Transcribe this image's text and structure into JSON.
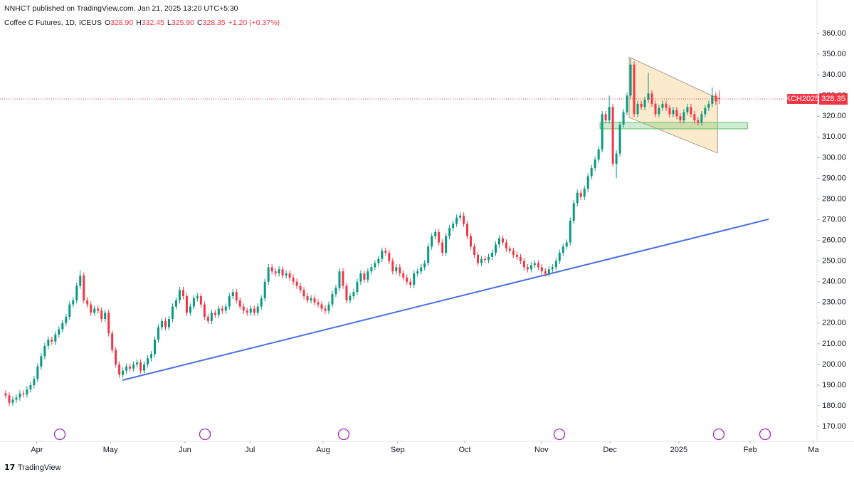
{
  "header": {
    "publisher": "NNHCT published on TradingView.com, Jan 21, 2025 13:20 UTC+5:30"
  },
  "footer": {
    "brand": "TradingView"
  },
  "chart_data": {
    "type": "candlestick",
    "title": "Coffee C Futures, 1D, ICEUS",
    "ohlc": [
      {
        "key": "O",
        "label": "328.90"
      },
      {
        "key": "H",
        "label": "332.45"
      },
      {
        "key": "L",
        "label": "325.90"
      },
      {
        "key": "C",
        "label": "328.35"
      }
    ],
    "change_label": "+1.20 (+0.37%)",
    "symbol_tag": "KCH2025",
    "last_price_label": "328.35",
    "up_color": "#089981",
    "down_color": "#f23645",
    "grid": false,
    "open": [
      186,
      185,
      181.5,
      183,
      184,
      186,
      185.5,
      188,
      190,
      193,
      199,
      204,
      209,
      212,
      211,
      214.5,
      217,
      220,
      223,
      229,
      231,
      238,
      243,
      231,
      229,
      225,
      227,
      226,
      222,
      225,
      215,
      207,
      200,
      195,
      197,
      199,
      198,
      200,
      201,
      197,
      200,
      203,
      205,
      212,
      218,
      221,
      218,
      222,
      228,
      231,
      236,
      233,
      225,
      228,
      232,
      233,
      229,
      223,
      221,
      225,
      224,
      227,
      226,
      228,
      233,
      235,
      231,
      228,
      226,
      225,
      227,
      225,
      228,
      232,
      240,
      247,
      245,
      244,
      246,
      243,
      244,
      242,
      240,
      238,
      236,
      233,
      231,
      232,
      230,
      229,
      227,
      226,
      229,
      234,
      237,
      245,
      238,
      231,
      233,
      235,
      240,
      244,
      241,
      245,
      247,
      249,
      251,
      255,
      254,
      250,
      245,
      247,
      244,
      242,
      240,
      238.5,
      244,
      245,
      247,
      249,
      257,
      262,
      264,
      259,
      254,
      262,
      266,
      268,
      271,
      272,
      268,
      262,
      257,
      253,
      249,
      251,
      250.5,
      252,
      254,
      258,
      261,
      259,
      256,
      255,
      253,
      252,
      250,
      247,
      246,
      248,
      249,
      247,
      245,
      244,
      246,
      247,
      250,
      254,
      257,
      259,
      269.5,
      278,
      283,
      281,
      285,
      291,
      295,
      299,
      304,
      321,
      318,
      324.5,
      297,
      302,
      316,
      322,
      330,
      345,
      321,
      326,
      324.5,
      328,
      331,
      326,
      321,
      324,
      326,
      324,
      321,
      323,
      320,
      318,
      322,
      324.5,
      321,
      318,
      317,
      321,
      324,
      326,
      330,
      328.9
    ],
    "high": [
      187.5,
      186.5,
      184.5,
      185.5,
      187.5,
      187.5,
      189.5,
      191.5,
      194.5,
      200.5,
      205.5,
      210.5,
      213.5,
      213.5,
      216,
      218.5,
      221.5,
      224.5,
      230.5,
      232.5,
      239.5,
      245.5,
      244.5,
      232.5,
      230.5,
      228.5,
      228.5,
      227.5,
      226.5,
      226.5,
      216.5,
      208.5,
      201.5,
      198.5,
      200.5,
      200.5,
      201.5,
      202.5,
      202.5,
      201.5,
      204.5,
      206.5,
      213.5,
      219.5,
      222.5,
      222.5,
      223.5,
      229.5,
      232.5,
      237.5,
      237.5,
      234.5,
      229.5,
      233.5,
      234.5,
      234.5,
      230.5,
      224.5,
      226.5,
      226.5,
      228.5,
      228.5,
      229.5,
      234.5,
      236.5,
      236.5,
      232.5,
      229.5,
      227.5,
      228.5,
      228.5,
      229.5,
      233.5,
      241.5,
      248.5,
      248.5,
      246.5,
      247.5,
      247.5,
      245.5,
      245.5,
      243.5,
      241.5,
      239.5,
      237.5,
      234.5,
      233.5,
      233.5,
      231.5,
      230.5,
      228.5,
      230.5,
      235.5,
      238.5,
      246.5,
      246.5,
      239.5,
      234.5,
      236.5,
      241.5,
      245.5,
      245.5,
      246.5,
      248.5,
      250.5,
      252.5,
      256.5,
      256.5,
      255.5,
      251.5,
      248.5,
      248.5,
      245.5,
      243.5,
      241.5,
      245.5,
      246.5,
      248.5,
      250.5,
      258.5,
      263.5,
      265.5,
      265.5,
      260.5,
      263.5,
      267.5,
      269.5,
      272.5,
      273.5,
      273.5,
      269.5,
      263.5,
      258.5,
      254.5,
      252.5,
      252.5,
      253.5,
      255.5,
      259.5,
      262.5,
      262.5,
      260.5,
      257.5,
      256.5,
      254.5,
      253.5,
      251.5,
      248.5,
      249.5,
      250.5,
      250.5,
      248.5,
      246.5,
      247.5,
      248.5,
      251.5,
      255.5,
      258.5,
      260.5,
      271,
      279.5,
      284.5,
      284.5,
      286.5,
      292.5,
      296.5,
      300.5,
      305.5,
      322.5,
      322.5,
      330,
      326,
      303.5,
      317.5,
      323.5,
      331.5,
      348,
      346.5,
      327.5,
      327.5,
      329.5,
      341,
      332.5,
      327.5,
      325.5,
      327.5,
      327.5,
      325.5,
      324.5,
      324.5,
      321.5,
      323.5,
      326,
      326,
      322.5,
      319.5,
      322.5,
      325.5,
      327.5,
      334,
      331.5,
      332.45
    ],
    "low": [
      183.5,
      180,
      180,
      181.5,
      182.5,
      184,
      184,
      186.5,
      188.5,
      191.5,
      197.5,
      202.5,
      207.5,
      209.5,
      209.5,
      213,
      215.5,
      218.5,
      221.5,
      227.5,
      229.5,
      236.5,
      229.5,
      227.5,
      223.5,
      223.5,
      224.5,
      220.5,
      220.5,
      213.5,
      205.5,
      198.5,
      193.5,
      193.5,
      195.5,
      196.5,
      196.5,
      198.5,
      195.5,
      195.5,
      198.5,
      201.5,
      203.5,
      210.5,
      216.5,
      216.5,
      216.5,
      220.5,
      226.5,
      229.5,
      231.5,
      223.5,
      223.5,
      226.5,
      230.5,
      227.5,
      221.5,
      219.5,
      219.5,
      222.5,
      222.5,
      224.5,
      224.5,
      226.5,
      231.5,
      229.5,
      226.5,
      224.5,
      223.5,
      223.5,
      223.5,
      223.5,
      226.5,
      230.5,
      238.5,
      243.5,
      242.5,
      242.5,
      241.5,
      241.5,
      240.5,
      238.5,
      236.5,
      234.5,
      231.5,
      229.5,
      229.5,
      228.5,
      227.5,
      225.5,
      224.5,
      224.5,
      227.5,
      232.5,
      235.5,
      236.5,
      229.5,
      229.5,
      231.5,
      233.5,
      238.5,
      239.5,
      239.5,
      243.5,
      245.5,
      247.5,
      249.5,
      252.5,
      248.5,
      243.5,
      243.5,
      242.5,
      240.5,
      238.5,
      237,
      237,
      242.5,
      243.5,
      245.5,
      247.5,
      255.5,
      260.5,
      257.5,
      252.5,
      252.5,
      260.5,
      264.5,
      266.5,
      269.5,
      266.5,
      260.5,
      255.5,
      251.5,
      247.5,
      247.5,
      249,
      249,
      250.5,
      252.5,
      256.5,
      257.5,
      254.5,
      253.5,
      251.5,
      250.5,
      248.5,
      245.5,
      244.5,
      244.5,
      246.5,
      245.5,
      243.5,
      242.5,
      242.5,
      244.5,
      245.5,
      248.5,
      252.5,
      255.5,
      257.5,
      268,
      276.5,
      279.5,
      279.5,
      283.5,
      289.5,
      293.5,
      297.5,
      302.5,
      316.5,
      316.5,
      295.5,
      290,
      300.5,
      314.5,
      320.5,
      328.5,
      319.5,
      319.5,
      323,
      323,
      326.5,
      324.5,
      319.5,
      319.5,
      322.5,
      322.5,
      319.5,
      319.5,
      318.5,
      316.5,
      316.5,
      320.5,
      319.5,
      316.5,
      315.5,
      315.5,
      319.5,
      322.5,
      324.5,
      325.5,
      325.9
    ],
    "close": [
      185,
      181.5,
      183,
      184,
      186,
      185.5,
      188,
      190,
      193,
      199,
      204,
      209,
      212,
      211,
      214.5,
      217,
      220,
      223,
      229,
      231,
      238,
      243,
      231,
      229,
      225,
      227,
      226,
      222,
      225,
      215,
      207,
      200,
      195,
      197,
      199,
      198,
      200,
      201,
      197,
      200,
      203,
      205,
      212,
      218,
      221,
      218,
      222,
      228,
      231,
      236,
      233,
      225,
      228,
      232,
      233,
      229,
      223,
      221,
      225,
      224,
      227,
      226,
      228,
      233,
      235,
      231,
      228,
      226,
      225,
      227,
      225,
      228,
      232,
      240,
      247,
      245,
      244,
      246,
      243,
      244,
      242,
      240,
      238,
      236,
      233,
      231,
      232,
      230,
      229,
      227,
      226,
      229,
      234,
      237,
      245,
      238,
      231,
      233,
      235,
      240,
      244,
      241,
      245,
      247,
      249,
      251,
      255,
      254,
      250,
      245,
      247,
      244,
      242,
      240,
      238.5,
      244,
      245,
      247,
      249,
      257,
      262,
      264,
      259,
      254,
      262,
      266,
      268,
      271,
      272,
      268,
      262,
      257,
      253,
      249,
      251,
      250.5,
      252,
      254,
      258,
      261,
      259,
      256,
      255,
      253,
      252,
      250,
      247,
      246,
      248,
      249,
      247,
      245,
      244,
      246,
      247,
      250,
      254,
      257,
      259,
      269.5,
      278,
      283,
      281,
      285,
      291,
      295,
      299,
      304,
      321,
      318,
      324.5,
      297,
      302,
      316,
      322,
      330,
      345,
      321,
      326,
      324.5,
      328,
      331,
      326,
      321,
      324,
      326,
      324,
      321,
      323,
      320,
      318,
      322,
      324.5,
      321,
      318,
      317,
      321,
      324,
      326,
      330,
      327.15,
      328.35
    ],
    "xlim": [
      -1.6,
      228.5
    ],
    "ylim": [
      162.8,
      376.2
    ],
    "xticks": [
      {
        "value": 8.8,
        "label": "Apr"
      },
      {
        "value": 29.5,
        "label": "May"
      },
      {
        "value": 50.5,
        "label": "Jun"
      },
      {
        "value": 68.8,
        "label": "Jul"
      },
      {
        "value": 89.4,
        "label": "Aug"
      },
      {
        "value": 110.4,
        "label": "Sep"
      },
      {
        "value": 129.3,
        "label": "Oct"
      },
      {
        "value": 150.9,
        "label": "Nov"
      },
      {
        "value": 170.2,
        "label": "Dec"
      },
      {
        "value": 189.6,
        "label": "2025"
      },
      {
        "value": 209.7,
        "label": "Feb"
      },
      {
        "value": 227.5,
        "label": "Ma"
      }
    ],
    "yticks": [
      {
        "value": 170,
        "label": "170.00"
      },
      {
        "value": 180,
        "label": "180.00"
      },
      {
        "value": 190,
        "label": "190.00"
      },
      {
        "value": 200,
        "label": "200.00"
      },
      {
        "value": 210,
        "label": "210.00"
      },
      {
        "value": 220,
        "label": "220.00"
      },
      {
        "value": 230,
        "label": "230.00"
      },
      {
        "value": 240,
        "label": "240.00"
      },
      {
        "value": 250,
        "label": "250.00"
      },
      {
        "value": 260,
        "label": "260.00"
      },
      {
        "value": 270,
        "label": "270.00"
      },
      {
        "value": 280,
        "label": "280.00"
      },
      {
        "value": 290,
        "label": "290.00"
      },
      {
        "value": 300,
        "label": "300.00"
      },
      {
        "value": 310,
        "label": "310.00"
      },
      {
        "value": 320,
        "label": "320.00"
      },
      {
        "value": 330,
        "label": "330.00"
      },
      {
        "value": 340,
        "label": "340.00"
      },
      {
        "value": 350,
        "label": "350.00"
      },
      {
        "value": 360,
        "label": "360.00"
      }
    ],
    "drawings": [
      {
        "type": "trendline",
        "color": "#4a6fe3",
        "x": [
          32.9,
          214.9
        ],
        "y": [
          192.4,
          270.2
        ]
      },
      {
        "type": "wedge",
        "color": "#f7c46c",
        "x": [
          175.6,
          200.5,
          200.5,
          175.6
        ],
        "y": [
          348.6,
          328.7,
          302.2,
          319.4
        ]
      },
      {
        "type": "zone",
        "color": "#5cbf6a",
        "x": [
          167.4,
          208.9
        ],
        "y": [
          317.0,
          313.9
        ]
      }
    ]
  }
}
